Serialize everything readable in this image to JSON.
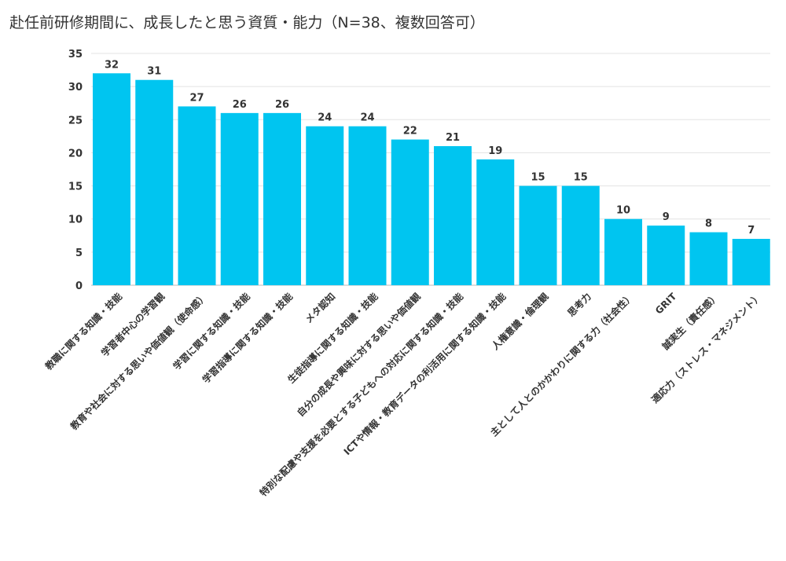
{
  "chart_data": {
    "type": "bar",
    "title": "赴任前研修期間に、成長したと思う資質・能力（N=38、複数回答可）",
    "xlabel": "",
    "ylabel": "",
    "ylim": [
      0,
      35
    ],
    "yticks": [
      0,
      5,
      10,
      15,
      20,
      25,
      30,
      35
    ],
    "grid": true,
    "bar_color": "#00C5F0",
    "categories": [
      "教職に関する知識・技能",
      "学習者中心の学習観",
      "教育や社会に対する思いや価値観（使命感）",
      "学習に関する知識・技能",
      "学習指導に関する知識・技能",
      "メタ認知",
      "生徒指導に関する知識・技能",
      "自分の成長や興味に対する思いや価値観",
      "特別な配慮や支援を必要とする子どもへの対応に関する知識・技能",
      "ICTや情報・教育データの利活用に関する知識・技能",
      "人権意識・倫理観",
      "思考力",
      "主として人とのかかわりに関する力（社会性）",
      "GRIT",
      "誠実生（責任感）",
      "適応力（ストレス・マネジメント）"
    ],
    "values": [
      32,
      31,
      27,
      26,
      26,
      24,
      24,
      22,
      21,
      19,
      15,
      15,
      10,
      9,
      8,
      7
    ]
  }
}
